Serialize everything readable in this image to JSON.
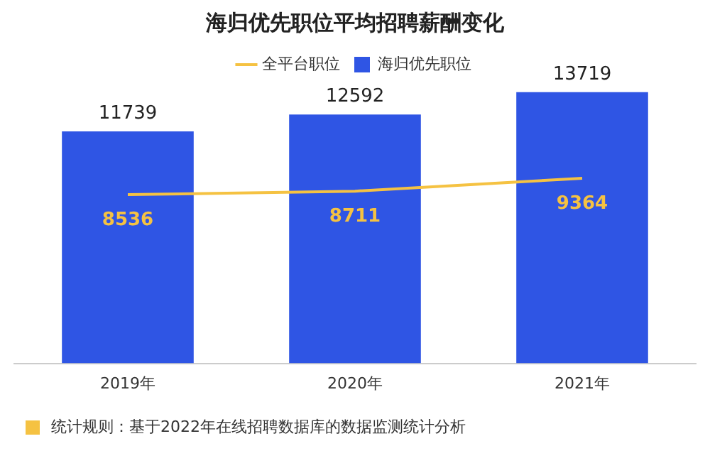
{
  "chart_data": {
    "type": "bar",
    "title": "海归优先职位平均招聘薪酬变化",
    "categories": [
      "2019年",
      "2020年",
      "2021年"
    ],
    "series": [
      {
        "name": "海归优先职位",
        "color": "#2f55e4",
        "values": [
          11739,
          12592,
          13719
        ]
      },
      {
        "name": "全平台职位",
        "type": "line",
        "color": "#f5c242",
        "values": [
          8536,
          8711,
          9364
        ]
      }
    ],
    "data_labels": true,
    "legend": "top",
    "grid": false,
    "marker": "none",
    "annotations": [
      "统计规则：基于2022年在线招聘数据库的数据监测统计分析"
    ]
  }
}
